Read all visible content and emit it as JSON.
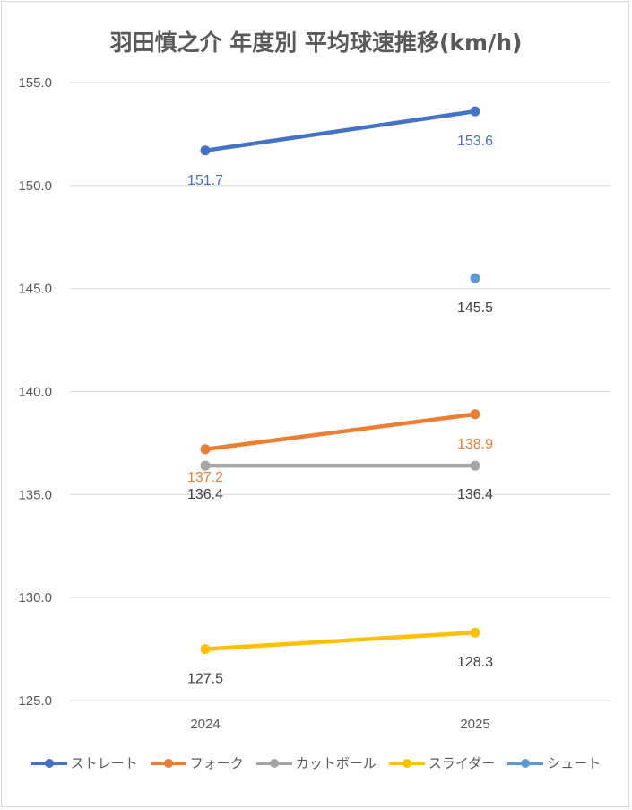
{
  "chart_data": {
    "type": "line",
    "title": "羽田慎之介 年度別 平均球速推移(km/h)",
    "categories": [
      "2024",
      "2025"
    ],
    "ylim": [
      125.0,
      155.0
    ],
    "yticks": [
      "125.0",
      "130.0",
      "135.0",
      "140.0",
      "145.0",
      "150.0",
      "155.0"
    ],
    "grid": true,
    "legend_position": "bottom",
    "series": [
      {
        "name": "ストレート",
        "color": "#4472c4",
        "values": [
          151.7,
          153.6
        ],
        "labels": [
          "151.7",
          "153.6"
        ],
        "label_color": "#4472c4"
      },
      {
        "name": "フォーク",
        "color": "#ed7d31",
        "values": [
          137.2,
          138.9
        ],
        "labels": [
          "137.2",
          "138.9"
        ],
        "label_color": "#ed7d31"
      },
      {
        "name": "カットボール",
        "color": "#a5a5a5",
        "values": [
          136.4,
          136.4
        ],
        "labels": [
          "136.4",
          "136.4"
        ],
        "label_color": "#404040"
      },
      {
        "name": "スライダー",
        "color": "#ffc000",
        "values": [
          127.5,
          128.3
        ],
        "labels": [
          "127.5",
          "128.3"
        ],
        "label_color": "#404040"
      },
      {
        "name": "シュート",
        "color": "#5b9bd5",
        "values": [
          null,
          145.5
        ],
        "labels": [
          "",
          "145.5"
        ],
        "label_color": "#404040"
      }
    ]
  }
}
